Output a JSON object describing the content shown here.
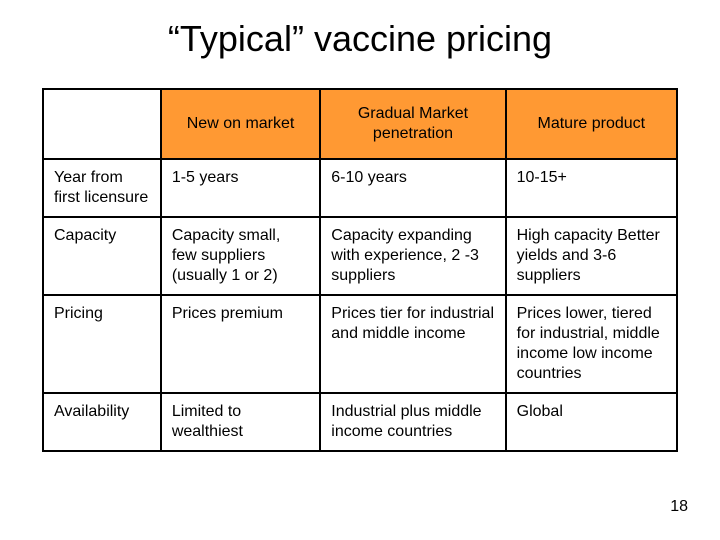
{
  "title": "“Typical” vaccine pricing",
  "page_number": "18",
  "header_color": "#ff9933",
  "border_color": "#000000",
  "background_color": "#ffffff",
  "text_color": "#000000",
  "title_fontsize": 36,
  "cell_fontsize": 16,
  "columns": {
    "c0": "",
    "c1": "New on market",
    "c2": "Gradual Market penetration",
    "c3": "Mature product"
  },
  "rows": {
    "r1": {
      "label": "Year from first licensure",
      "c1": "1-5 years",
      "c2": "6-10 years",
      "c3": "10-15+"
    },
    "r2": {
      "label": "Capacity",
      "c1": "Capacity small, few suppliers (usually 1 or 2)",
      "c2": "Capacity expanding with experience, 2 -3 suppliers",
      "c3": "High capacity Better yields and 3-6 suppliers"
    },
    "r3": {
      "label": "Pricing",
      "c1": "Prices premium",
      "c2": "Prices tier for industrial and middle income",
      "c3": "Prices lower, tiered for industrial, middle income low income countries"
    },
    "r4": {
      "label": "Availability",
      "c1": "Limited to wealthiest",
      "c2": "Industrial plus middle income countries",
      "c3": "Global"
    }
  }
}
